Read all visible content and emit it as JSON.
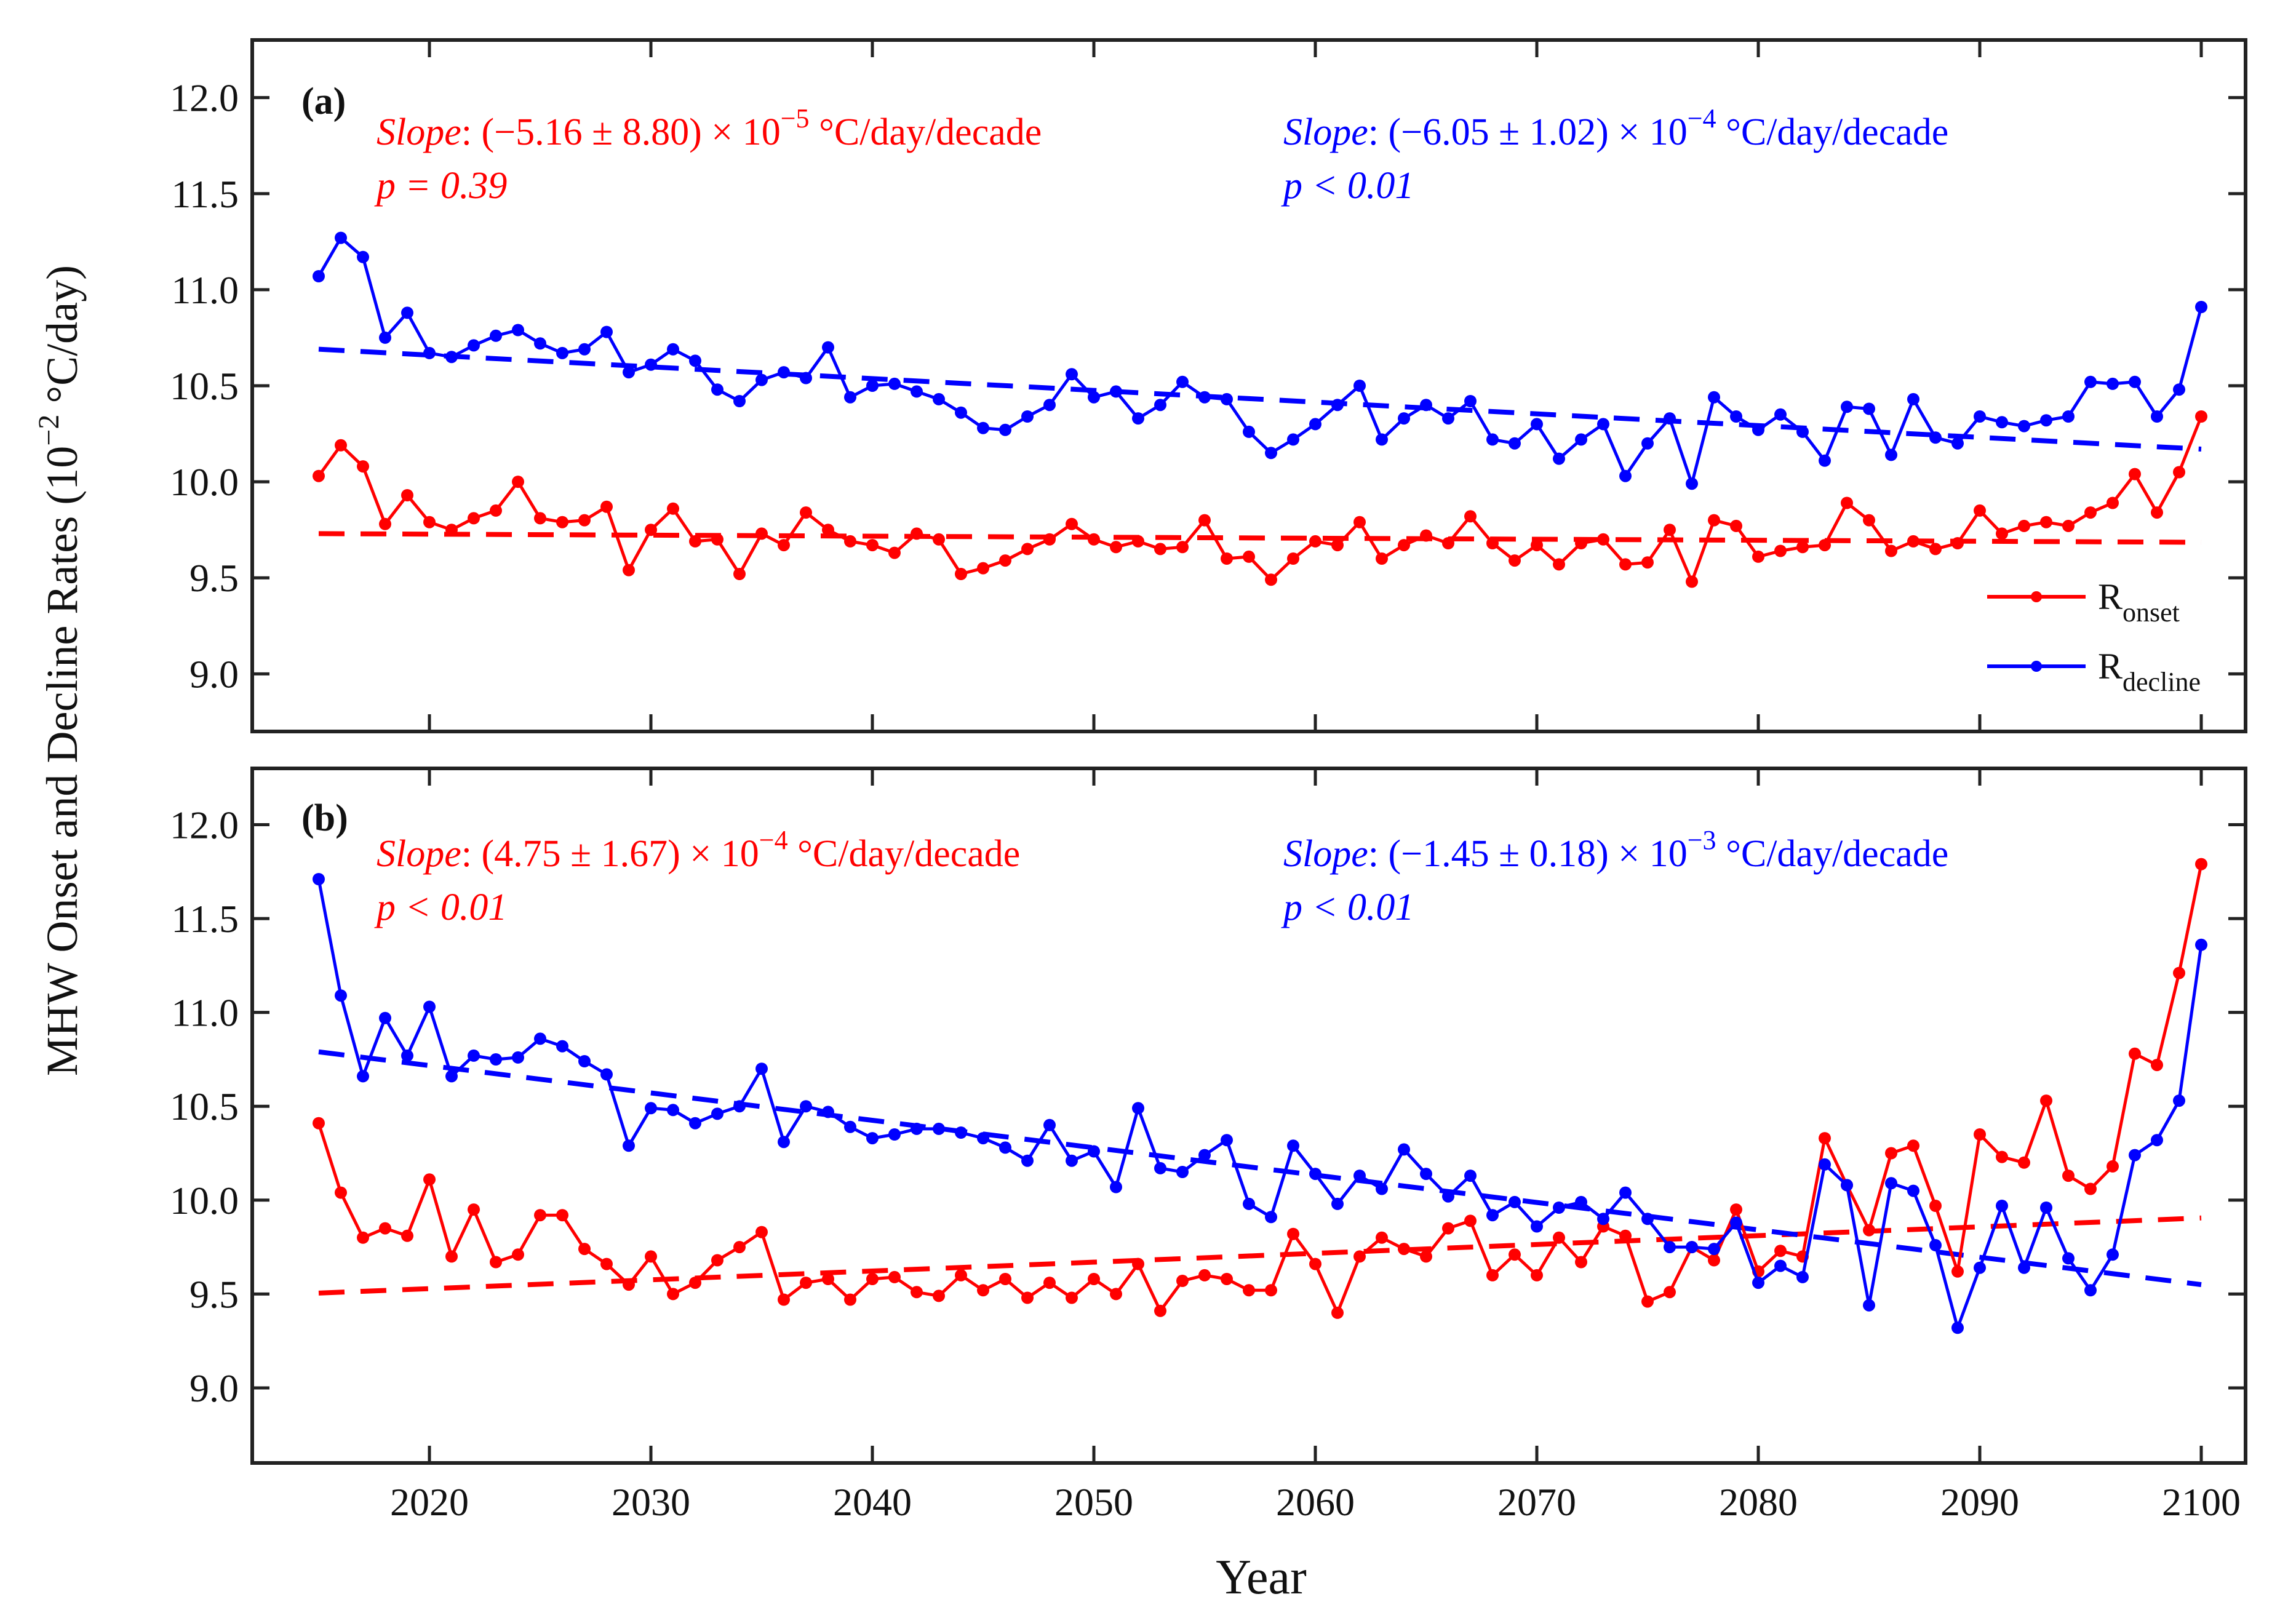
{
  "figure": {
    "xlabel": "Year",
    "ylabel_main": "MHW Onset and Decline Rates (10",
    "ylabel_exp": "−2",
    "ylabel_tail": " °C/day)"
  },
  "chart_data": [
    {
      "type": "line",
      "panel_label": "(a)",
      "xlim": [
        2012,
        2102
      ],
      "ylim": [
        8.7,
        12.3
      ],
      "xticks": [
        2020,
        2030,
        2040,
        2050,
        2060,
        2070,
        2080,
        2090,
        2100
      ],
      "yticks": [
        9.0,
        9.5,
        10.0,
        10.5,
        11.0,
        11.5,
        12.0
      ],
      "xtick_labels": [
        "2020",
        "2030",
        "2040",
        "2050",
        "2060",
        "2070",
        "2080",
        "2090",
        "2100"
      ],
      "ytick_labels": [
        "9.0",
        "9.5",
        "10.0",
        "10.5",
        "11.0",
        "11.5",
        "12.0"
      ],
      "start_year": 2015,
      "series": [
        {
          "name": "R_onset",
          "legend_main": "R",
          "legend_sub": "onset",
          "color": "#ff0000",
          "values": [
            10.03,
            10.19,
            10.08,
            9.78,
            9.93,
            9.79,
            9.75,
            9.81,
            9.85,
            10.0,
            9.81,
            9.79,
            9.8,
            9.87,
            9.54,
            9.75,
            9.86,
            9.69,
            9.7,
            9.52,
            9.73,
            9.67,
            9.84,
            9.75,
            9.69,
            9.67,
            9.63,
            9.73,
            9.7,
            9.52,
            9.55,
            9.59,
            9.65,
            9.7,
            9.78,
            9.7,
            9.66,
            9.69,
            9.65,
            9.66,
            9.8,
            9.6,
            9.61,
            9.49,
            9.6,
            9.69,
            9.67,
            9.79,
            9.6,
            9.67,
            9.72,
            9.68,
            9.82,
            9.68,
            9.59,
            9.67,
            9.57,
            9.68,
            9.7,
            9.57,
            9.58,
            9.75,
            9.48,
            9.8,
            9.77,
            9.61,
            9.64,
            9.66,
            9.67,
            9.89,
            9.8,
            9.64,
            9.69,
            9.65,
            9.68,
            9.85,
            9.73,
            9.77,
            9.79,
            9.77,
            9.84,
            9.89,
            10.04,
            9.84,
            10.05,
            10.34
          ],
          "trend": [
            9.73,
            9.685
          ],
          "slope_label": "Slope",
          "slope_text": ": (−5.16 ± 8.80) × 10",
          "slope_exp": "−5",
          "slope_unit": " °C/day/decade",
          "p_text": "p = 0.39"
        },
        {
          "name": "R_decline",
          "legend_main": "R",
          "legend_sub": "decline",
          "color": "#0000ff",
          "values": [
            11.07,
            11.27,
            11.17,
            10.75,
            10.88,
            10.67,
            10.65,
            10.71,
            10.76,
            10.79,
            10.72,
            10.67,
            10.69,
            10.78,
            10.57,
            10.61,
            10.69,
            10.63,
            10.48,
            10.42,
            10.53,
            10.57,
            10.54,
            10.7,
            10.44,
            10.5,
            10.51,
            10.47,
            10.43,
            10.36,
            10.28,
            10.27,
            10.34,
            10.4,
            10.56,
            10.44,
            10.47,
            10.33,
            10.4,
            10.52,
            10.44,
            10.43,
            10.26,
            10.15,
            10.22,
            10.3,
            10.4,
            10.5,
            10.22,
            10.33,
            10.4,
            10.33,
            10.42,
            10.22,
            10.2,
            10.3,
            10.12,
            10.22,
            10.3,
            10.03,
            10.2,
            10.33,
            9.99,
            10.44,
            10.34,
            10.27,
            10.35,
            10.26,
            10.11,
            10.39,
            10.38,
            10.14,
            10.43,
            10.23,
            10.2,
            10.34,
            10.31,
            10.29,
            10.32,
            10.34,
            10.52,
            10.51,
            10.52,
            10.34,
            10.48,
            10.91
          ],
          "trend": [
            10.69,
            10.17
          ],
          "slope_label": "Slope",
          "slope_text": ": (−6.05 ± 1.02) × 10",
          "slope_exp": "−4",
          "slope_unit": " °C/day/decade",
          "p_text": "p < 0.01"
        }
      ]
    },
    {
      "type": "line",
      "panel_label": "(b)",
      "xlim": [
        2012,
        2102
      ],
      "ylim": [
        8.6,
        12.3
      ],
      "xticks": [
        2020,
        2030,
        2040,
        2050,
        2060,
        2070,
        2080,
        2090,
        2100
      ],
      "yticks": [
        9.0,
        9.5,
        10.0,
        10.5,
        11.0,
        11.5,
        12.0
      ],
      "xtick_labels": [
        "2020",
        "2030",
        "2040",
        "2050",
        "2060",
        "2070",
        "2080",
        "2090",
        "2100"
      ],
      "ytick_labels": [
        "9.0",
        "9.5",
        "10.0",
        "10.5",
        "11.0",
        "11.5",
        "12.0"
      ],
      "start_year": 2015,
      "series": [
        {
          "name": "R_onset",
          "color": "#ff0000",
          "values": [
            10.41,
            10.04,
            9.8,
            9.85,
            9.81,
            10.11,
            9.7,
            9.95,
            9.67,
            9.71,
            9.92,
            9.92,
            9.74,
            9.66,
            9.55,
            9.7,
            9.5,
            9.56,
            9.68,
            9.75,
            9.83,
            9.47,
            9.56,
            9.58,
            9.47,
            9.58,
            9.59,
            9.51,
            9.49,
            9.6,
            9.52,
            9.58,
            9.48,
            9.56,
            9.48,
            9.58,
            9.5,
            9.66,
            9.41,
            9.57,
            9.6,
            9.58,
            9.52,
            9.52,
            9.82,
            9.66,
            9.4,
            9.7,
            9.8,
            9.74,
            9.7,
            9.85,
            9.89,
            9.6,
            9.71,
            9.6,
            9.8,
            9.67,
            9.86,
            9.81,
            9.46,
            9.51,
            9.75,
            9.68,
            9.95,
            9.62,
            9.73,
            9.7,
            10.33,
            10.08,
            9.84,
            10.25,
            10.29,
            9.97,
            9.62,
            10.35,
            10.23,
            10.2,
            10.53,
            10.13,
            10.06,
            10.18,
            10.78,
            10.72,
            11.21,
            11.79
          ],
          "trend": [
            9.505,
            9.905
          ],
          "slope_label": "Slope",
          "slope_text": ": (4.75 ± 1.67) × 10",
          "slope_exp": "−4",
          "slope_unit": " °C/day/decade",
          "p_text": "p < 0.01"
        },
        {
          "name": "R_decline",
          "color": "#0000ff",
          "values": [
            11.71,
            11.09,
            10.66,
            10.97,
            10.77,
            11.03,
            10.66,
            10.77,
            10.75,
            10.76,
            10.86,
            10.82,
            10.74,
            10.67,
            10.29,
            10.49,
            10.48,
            10.41,
            10.46,
            10.5,
            10.7,
            10.31,
            10.5,
            10.47,
            10.39,
            10.33,
            10.35,
            10.38,
            10.38,
            10.36,
            10.33,
            10.28,
            10.21,
            10.4,
            10.21,
            10.26,
            10.07,
            10.49,
            10.17,
            10.15,
            10.24,
            10.32,
            9.98,
            9.91,
            10.29,
            10.14,
            9.98,
            10.13,
            10.06,
            10.27,
            10.14,
            10.02,
            10.13,
            9.92,
            9.99,
            9.86,
            9.96,
            9.99,
            9.9,
            10.04,
            9.9,
            9.75,
            9.75,
            9.74,
            9.88,
            9.56,
            9.65,
            9.59,
            10.19,
            10.08,
            9.44,
            10.09,
            10.05,
            9.76,
            9.32,
            9.64,
            9.97,
            9.64,
            9.96,
            9.69,
            9.52,
            9.71,
            10.24,
            10.32,
            10.53,
            11.36
          ],
          "trend": [
            10.79,
            9.55
          ],
          "slope_label": "Slope",
          "slope_text": ": (−1.45 ± 0.18) × 10",
          "slope_exp": "−3",
          "slope_unit": " °C/day/decade",
          "p_text": "p < 0.01"
        }
      ]
    }
  ]
}
